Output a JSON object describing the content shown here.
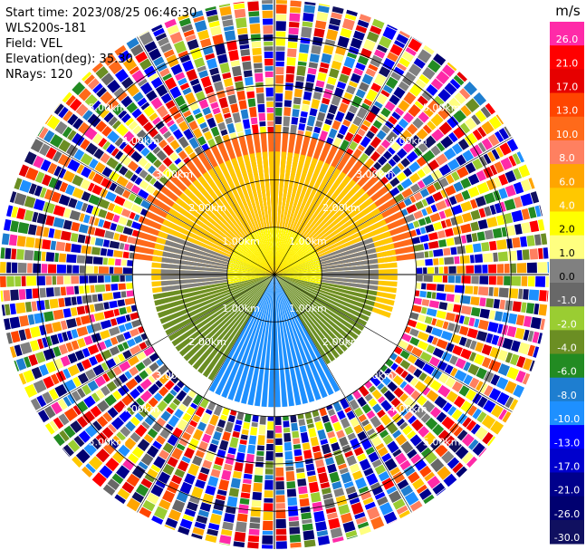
{
  "header": {
    "start_time": "Start time: 2023/08/25 06:46:30",
    "instrument": "WLS200s-181",
    "field": "Field: VEL",
    "elevation": "Elevation(deg): 35.30",
    "nrays": "NRays: 120"
  },
  "chart_data": {
    "type": "heatmap",
    "projection": "polar-ppi",
    "nrays": 120,
    "range_rings_km": [
      1.0,
      2.0,
      3.0,
      4.0,
      5.0
    ],
    "ring_labels": [
      "1.00km",
      "2.00km",
      "3.00km",
      "4.00km",
      "5.00km"
    ],
    "colorbar": {
      "unit": "m/s",
      "tick_labels": [
        "26.0",
        "21.0",
        "17.0",
        "13.0",
        "10.0",
        "8.0",
        "6.0",
        "4.0",
        "2.0",
        "1.0",
        "0.0",
        "-1.0",
        "-2.0",
        "-4.0",
        "-6.0",
        "-8.0",
        "-10.0",
        "-13.0",
        "-17.0",
        "-21.0",
        "-26.0",
        "-30.0"
      ],
      "colors": [
        "#ff2aa8",
        "#ff0000",
        "#e60000",
        "#ff4500",
        "#ff6a1a",
        "#ff8060",
        "#ffa500",
        "#ffc800",
        "#ffff00",
        "#ffff80",
        "#808080",
        "#686868",
        "#9acd32",
        "#6b8e23",
        "#228b22",
        "#1e7ed0",
        "#1e90ff",
        "#0000ff",
        "#0000cd",
        "#00008b",
        "#000070",
        "#101060"
      ]
    },
    "sectors": [
      {
        "from_az": 275,
        "to_az": 85,
        "max_range_km": 3.0,
        "value": 10.0
      },
      {
        "from_az": 250,
        "to_az": 110,
        "max_range_km": 2.6,
        "value": 4.0
      },
      {
        "from_az": 258,
        "to_az": 102,
        "max_range_km": 1.0,
        "value": 2.0
      },
      {
        "from_az": 260,
        "to_az": 290,
        "max_range_km": 2.4,
        "value": 0.0
      },
      {
        "from_az": 70,
        "to_az": 100,
        "max_range_km": 2.2,
        "value": 0.0
      },
      {
        "from_az": 100,
        "to_az": 150,
        "max_range_km": 2.2,
        "value": -4.0
      },
      {
        "from_az": 210,
        "to_az": 260,
        "max_range_km": 2.6,
        "value": -4.0
      },
      {
        "from_az": 150,
        "to_az": 210,
        "max_range_km": 2.8,
        "value": -10.0
      }
    ],
    "noise_beyond_km": 3.0,
    "max_range_km": 5.8
  }
}
